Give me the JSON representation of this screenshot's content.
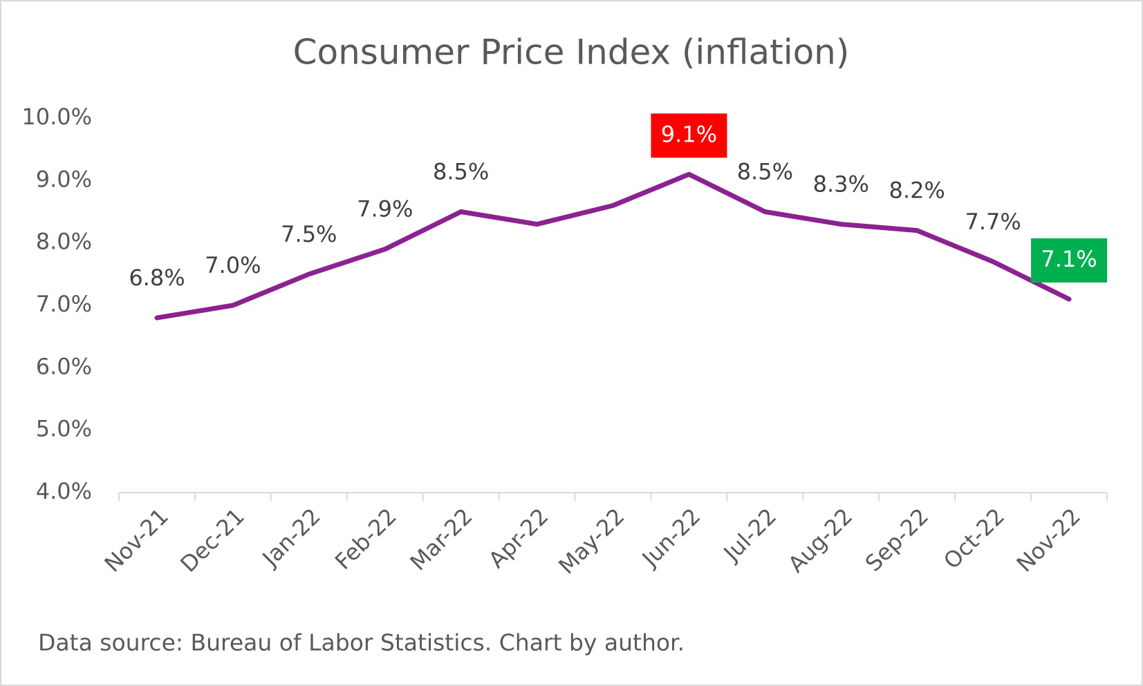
{
  "chart_data": {
    "type": "line",
    "title": "Consumer Price Index (inflation)",
    "categories": [
      "Nov-21",
      "Dec-21",
      "Jan-22",
      "Feb-22",
      "Mar-22",
      "Apr-22",
      "May-22",
      "Jun-22",
      "Jul-22",
      "Aug-22",
      "Sep-22",
      "Oct-22",
      "Nov-22"
    ],
    "series": [
      {
        "name": "CPI",
        "color": "#8b2291",
        "values": [
          6.8,
          7.0,
          7.5,
          7.9,
          8.5,
          8.3,
          8.6,
          9.1,
          8.5,
          8.3,
          8.2,
          7.7,
          7.1
        ],
        "value_labels": [
          "6.8%",
          "7.0%",
          "7.5%",
          "7.9%",
          "8.5%",
          null,
          null,
          "9.1%",
          "8.5%",
          "8.3%",
          "8.2%",
          "7.7%",
          "7.1%"
        ],
        "value_label_backgrounds": [
          null,
          null,
          null,
          null,
          null,
          null,
          null,
          "#ff0000",
          null,
          null,
          null,
          null,
          "#00b050"
        ]
      }
    ],
    "ylim": [
      4,
      10
    ],
    "yticks": [
      {
        "value": 4,
        "label": "4.0%"
      },
      {
        "value": 5,
        "label": "5.0%"
      },
      {
        "value": 6,
        "label": "6.0%"
      },
      {
        "value": 7,
        "label": "7.0%"
      },
      {
        "value": 8,
        "label": "8.0%"
      },
      {
        "value": 9,
        "label": "9.0%"
      },
      {
        "value": 10,
        "label": "10.0%"
      }
    ],
    "grid": false,
    "note": "Data source: Bureau of Labor Statistics. Chart by author."
  }
}
